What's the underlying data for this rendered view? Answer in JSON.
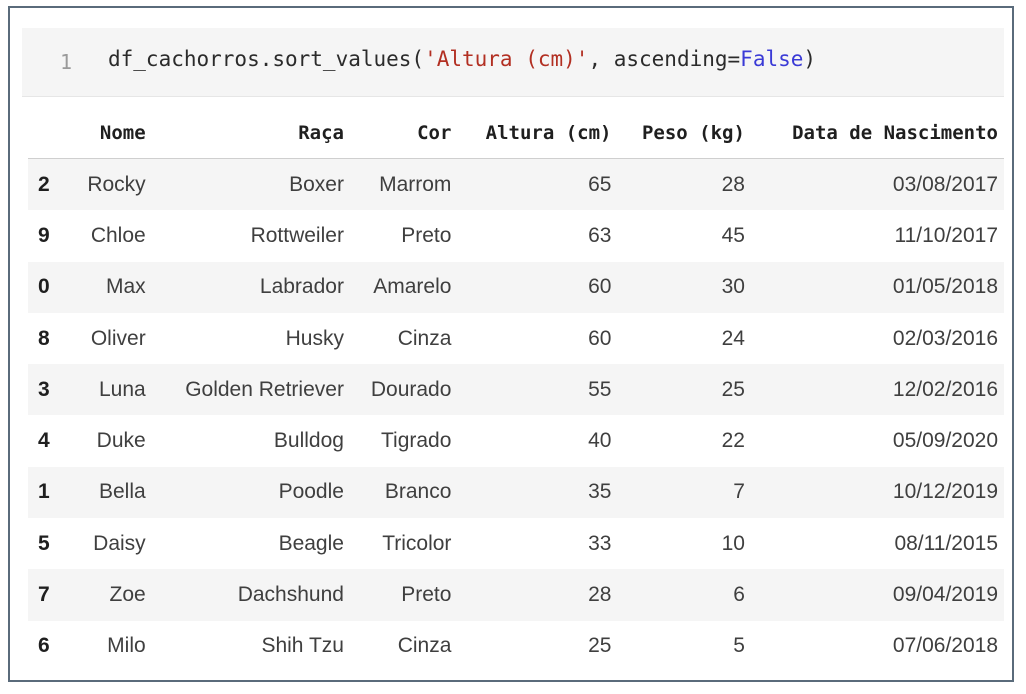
{
  "code_cell": {
    "line_number": "1",
    "code_prefix": "df_cachorros.sort_values(",
    "code_string": "'Altura (cm)'",
    "code_middle": ", ascending=",
    "code_keyword": "False",
    "code_suffix": ")"
  },
  "table": {
    "columns": [
      "",
      "Nome",
      "Raça",
      "Cor",
      "Altura (cm)",
      "Peso (kg)",
      "Data de Nascimento"
    ],
    "rows": [
      [
        "2",
        "Rocky",
        "Boxer",
        "Marrom",
        "65",
        "28",
        "03/08/2017"
      ],
      [
        "9",
        "Chloe",
        "Rottweiler",
        "Preto",
        "63",
        "45",
        "11/10/2017"
      ],
      [
        "0",
        "Max",
        "Labrador",
        "Amarelo",
        "60",
        "30",
        "01/05/2018"
      ],
      [
        "8",
        "Oliver",
        "Husky",
        "Cinza",
        "60",
        "24",
        "02/03/2016"
      ],
      [
        "3",
        "Luna",
        "Golden Retriever",
        "Dourado",
        "55",
        "25",
        "12/02/2016"
      ],
      [
        "4",
        "Duke",
        "Bulldog",
        "Tigrado",
        "40",
        "22",
        "05/09/2020"
      ],
      [
        "1",
        "Bella",
        "Poodle",
        "Branco",
        "35",
        "7",
        "10/12/2019"
      ],
      [
        "5",
        "Daisy",
        "Beagle",
        "Tricolor",
        "33",
        "10",
        "08/11/2015"
      ],
      [
        "7",
        "Zoe",
        "Dachshund",
        "Preto",
        "28",
        "6",
        "09/04/2019"
      ],
      [
        "6",
        "Milo",
        "Shih Tzu",
        "Cinza",
        "25",
        "5",
        "07/06/2018"
      ]
    ]
  },
  "colors": {
    "string": "#b22f22",
    "keyword": "#3a3ad6",
    "row_stripe": "#f5f5f5",
    "frame_border": "#5a6b7b"
  }
}
